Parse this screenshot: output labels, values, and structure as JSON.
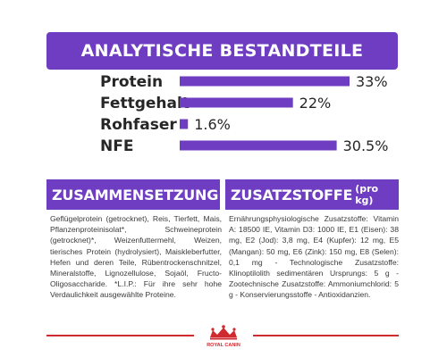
{
  "header": {
    "title": "Analytische Bestandteile"
  },
  "chart_data": {
    "type": "bar",
    "title": "Analytische Bestandteile",
    "xlabel": "",
    "ylabel": "",
    "categories": [
      "Protein",
      "Fettgehalt",
      "Rohfaser",
      "NFE"
    ],
    "values": [
      33,
      22,
      1.6,
      30.5
    ],
    "value_labels": [
      "33%",
      "22%",
      "1.6%",
      "30.5%"
    ],
    "unit": "%",
    "bar_color": "#6e3dc2",
    "grid": false,
    "legend": "none"
  },
  "sections": {
    "composition": {
      "title": "Zusammensetzung",
      "text": "Geflügelprotein (getrocknet), Reis, Tierfett, Mais, Pflanzenproteinisolat*, Schweineprotein (getrocknet)*, Weizenfuttermehl, Weizen, tierisches Protein (hydrolysiert), Maiskleberfutter, Hefen und deren Teile, Rübentrockenschnitzel, Mineralstoffe, Lignozellulose, Sojaöl, Fructo-Oligosaccharide. *L.I.P.: Für ihre sehr hohe Verdaulichkeit ausgewählte Proteine."
    },
    "additives": {
      "title": "Zusatzstoffe",
      "subtitle": "(pro kg)",
      "text": "Ernährungsphysiologische Zusatzstoffe: Vitamin A: 18500 IE, Vitamin D3: 1000 IE, E1 (Eisen): 38 mg, E2 (Jod): 3,8 mg, E4 (Kupfer): 12 mg, E5 (Mangan): 50 mg, E6 (Zink): 150 mg, E8 (Selen): 0,1 mg - Technologische Zusatzstoffe: Klinoptilolith sedimentären Ursprungs: 5 g - Zootechnische Zusatzstoffe: Ammoniumchlorid: 5 g - Konservierungsstoffe - Antioxidanzien."
    }
  },
  "footer": {
    "logo_text": "ROYAL CANIN",
    "brand_color": "#cf2a2f"
  }
}
